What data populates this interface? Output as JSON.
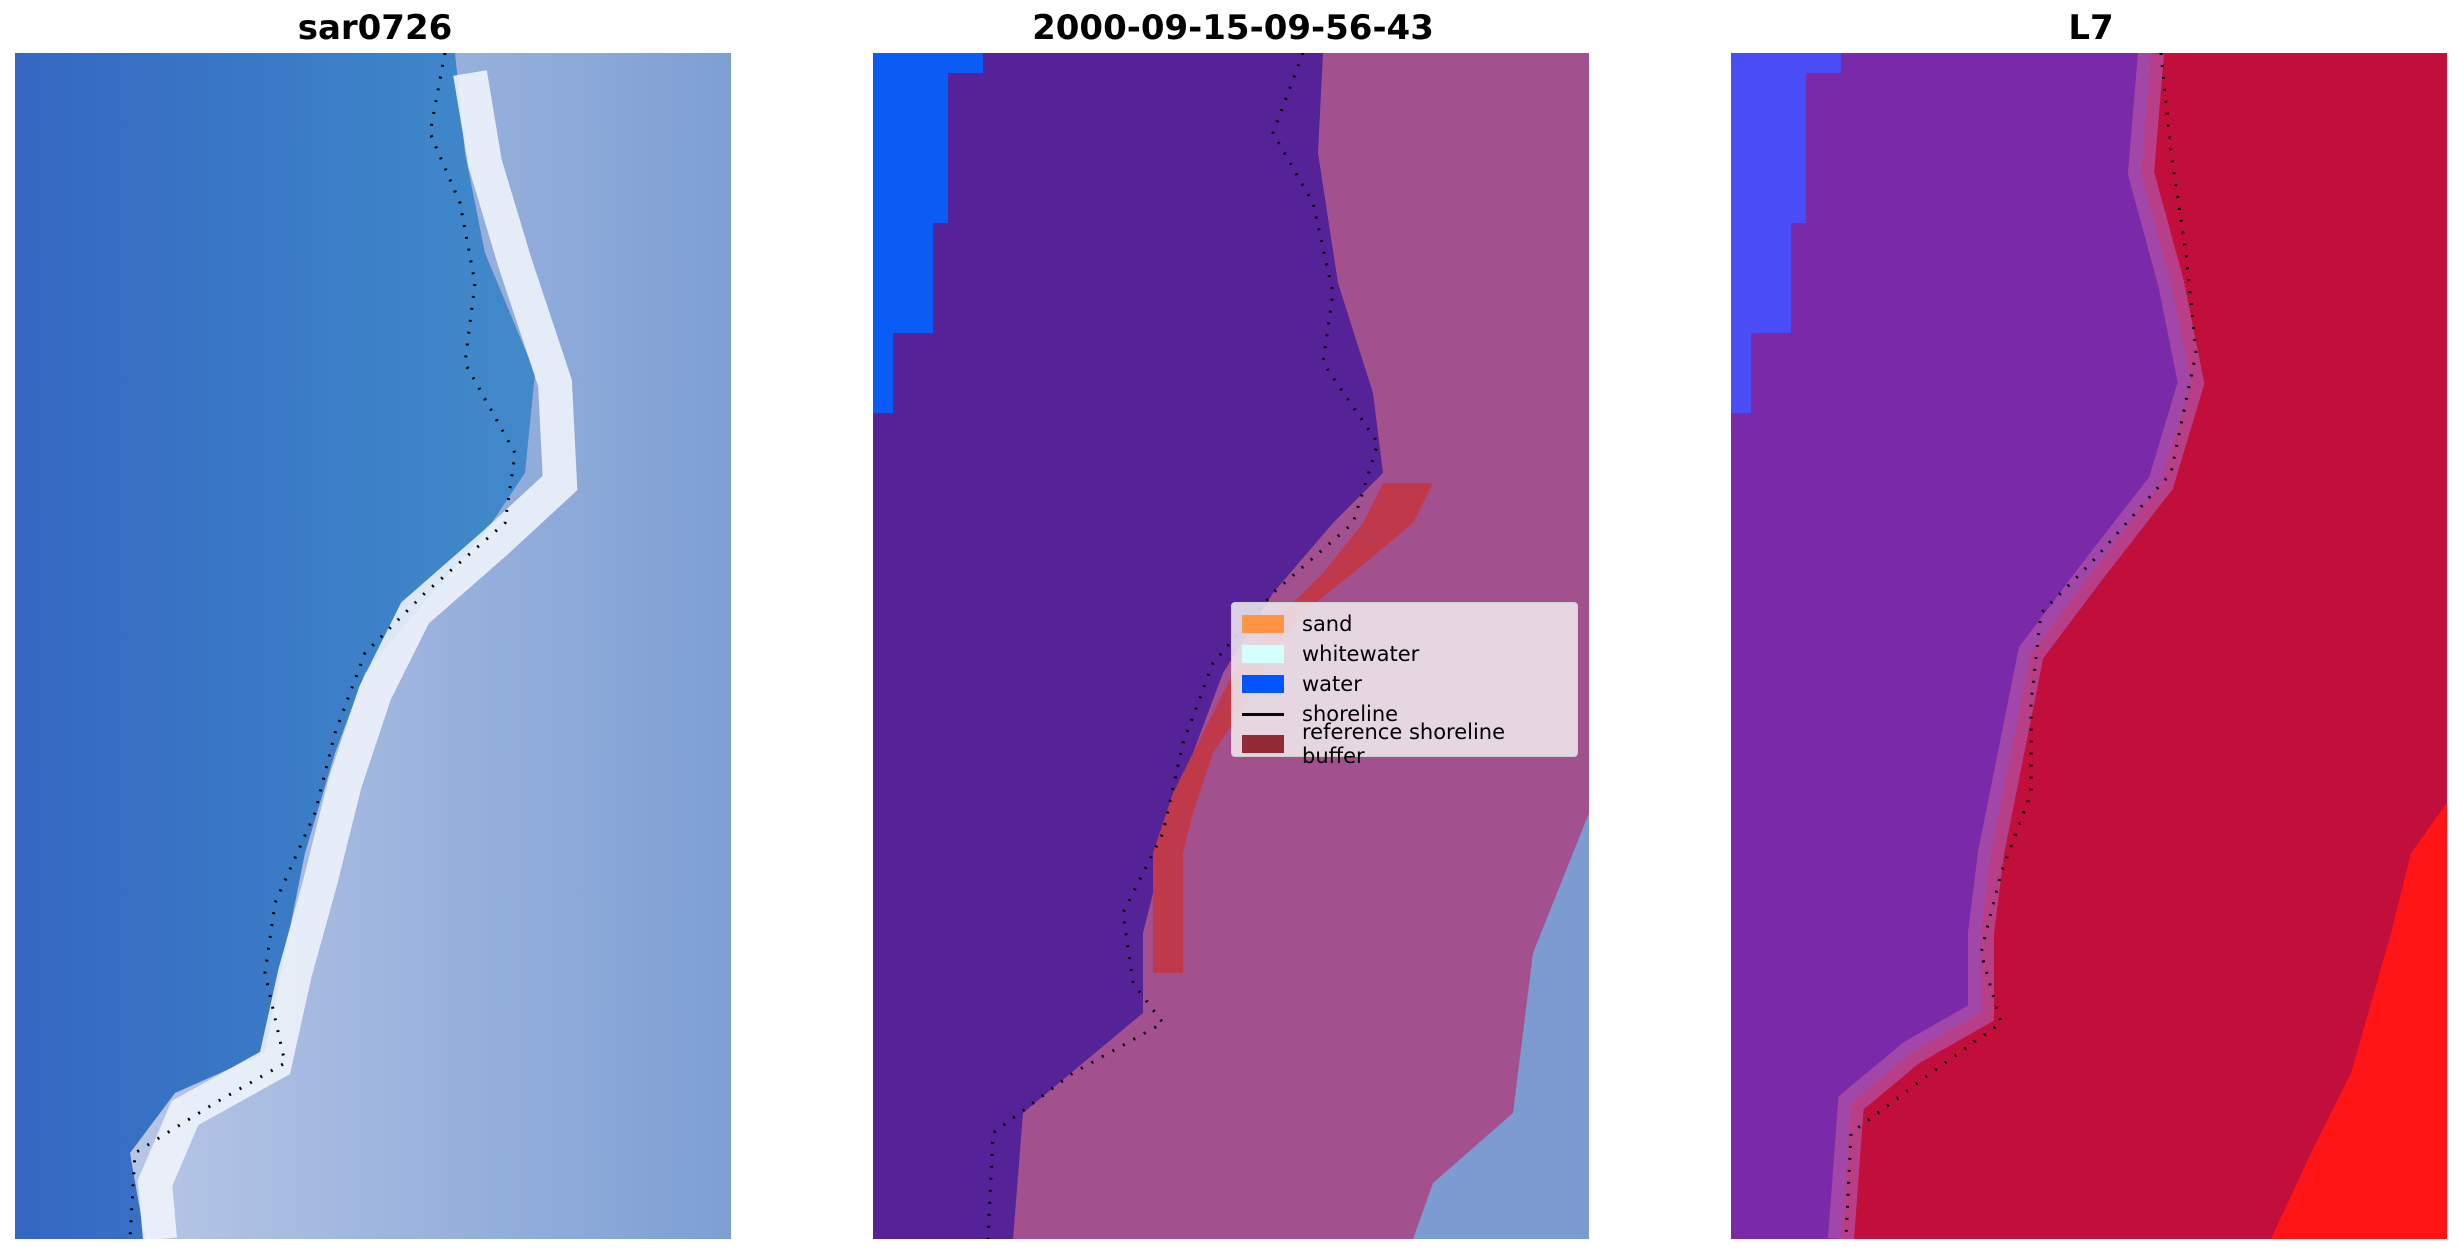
{
  "panels": [
    {
      "title": "sar0726"
    },
    {
      "title": "2000-09-15-09-56-43"
    },
    {
      "title": "L7"
    }
  ],
  "legend": {
    "items": [
      {
        "label": "sand",
        "color": "#ff9445"
      },
      {
        "label": "whitewater",
        "color": "#d4ffff"
      },
      {
        "label": "water",
        "color": "#0055ff"
      },
      {
        "label": "shoreline",
        "color": "#000000"
      },
      {
        "label": "reference shoreline buffer",
        "color": "#922b35"
      }
    ]
  },
  "colors": {
    "rgb_water": "#3a7bc8",
    "rgb_surf": "#e8eef8",
    "rgb_land": "#8fa9d6",
    "class_water_overlay": "#55229a",
    "class_land": "#9a4a8a",
    "class_buffer": "#c0394b",
    "class_water_pixels": "#0a5cf5",
    "l7_water": "#7a2aa8",
    "l7_land": "#c4103a",
    "l7_bright": "#ff1515",
    "l7_blue": "#4a4cf5"
  }
}
